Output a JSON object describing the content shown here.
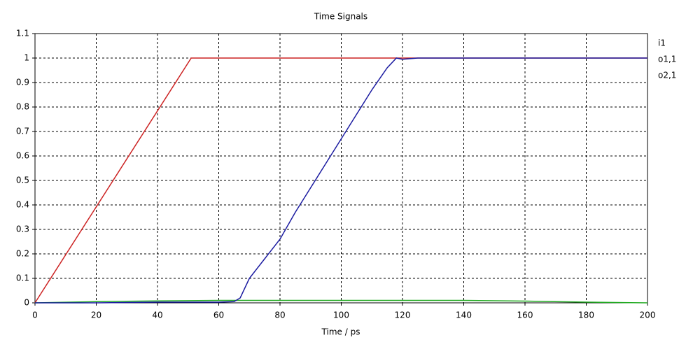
{
  "chart_data": {
    "type": "line",
    "title": "Time Signals",
    "x_label": "Time / ps",
    "xlim": [
      0,
      200
    ],
    "xticks": [
      0,
      20,
      40,
      60,
      80,
      100,
      120,
      140,
      160,
      180,
      200
    ],
    "ylim": [
      0,
      1.1
    ],
    "yticks": [
      0,
      0.1,
      0.2,
      0.3,
      0.4,
      0.5,
      0.6,
      0.7,
      0.8,
      0.9,
      1,
      1.1
    ],
    "grid": true,
    "legend": "right",
    "series": [
      {
        "name": "i1",
        "color": "#cc2222",
        "x": [
          0,
          51,
          200
        ],
        "values": [
          0,
          1,
          1
        ]
      },
      {
        "name": "o1,1",
        "color": "#22aa22",
        "x": [
          0,
          20,
          40,
          60,
          100,
          140,
          160,
          180,
          200
        ],
        "values": [
          0,
          0.005,
          0.008,
          0.01,
          0.01,
          0.01,
          0.007,
          0.003,
          0
        ]
      },
      {
        "name": "o2,1",
        "color": "#1a1aa0",
        "x": [
          0,
          20,
          40,
          60,
          65,
          67,
          70,
          75,
          80,
          85,
          90,
          95,
          100,
          105,
          110,
          115,
          118,
          120,
          125,
          140,
          160,
          180,
          200
        ],
        "values": [
          0,
          0,
          0.003,
          0.003,
          0.005,
          0.02,
          0.1,
          0.18,
          0.26,
          0.37,
          0.47,
          0.57,
          0.67,
          0.77,
          0.87,
          0.96,
          1,
          0.995,
          1,
          1,
          1,
          1,
          1
        ]
      }
    ]
  }
}
